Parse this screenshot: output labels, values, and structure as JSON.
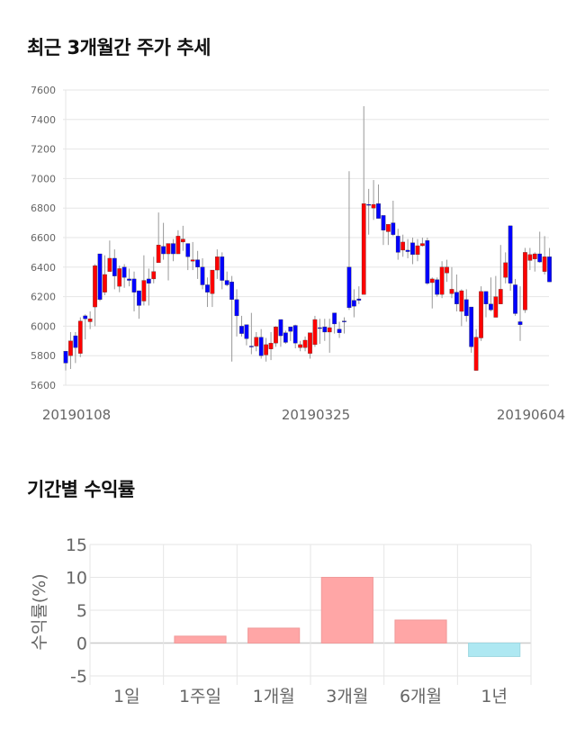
{
  "price_section": {
    "title": "최근 3개월간 주가 추세"
  },
  "return_section": {
    "title": "기간별 수익률"
  },
  "chart_data": [
    {
      "type": "candlestick",
      "ylim": [
        5600,
        7600
      ],
      "y_ticks": [
        5600,
        5800,
        6000,
        6200,
        6400,
        6600,
        6800,
        7000,
        7200,
        7400,
        7600
      ],
      "x_ticks": [
        {
          "label": "20190108",
          "index": 0
        },
        {
          "label": "20190325",
          "index": 49
        },
        {
          "label": "20190604",
          "index": 95
        }
      ],
      "grid": true,
      "colors": {
        "up": "#ff0000",
        "down": "#0000ff",
        "wick": "#999999"
      },
      "candles": [
        [
          5830,
          5830,
          5700,
          5750
        ],
        [
          5800,
          5960,
          5710,
          5900
        ],
        [
          5935,
          5960,
          5750,
          5855
        ],
        [
          5815,
          6060,
          5790,
          6035
        ],
        [
          6070,
          6080,
          5910,
          6050
        ],
        [
          6030,
          6100,
          5980,
          6050
        ],
        [
          6130,
          6420,
          6000,
          6410
        ],
        [
          6490,
          6490,
          6170,
          6180
        ],
        [
          6230,
          6480,
          6210,
          6350
        ],
        [
          6370,
          6580,
          6370,
          6460
        ],
        [
          6460,
          6520,
          6250,
          6340
        ],
        [
          6270,
          6410,
          6230,
          6390
        ],
        [
          6400,
          6420,
          6260,
          6330
        ],
        [
          6320,
          6390,
          6270,
          6310
        ],
        [
          6320,
          6370,
          6100,
          6230
        ],
        [
          6240,
          6240,
          6050,
          6140
        ],
        [
          6170,
          6480,
          6140,
          6310
        ],
        [
          6320,
          6390,
          6140,
          6290
        ],
        [
          6320,
          6470,
          6290,
          6370
        ],
        [
          6430,
          6770,
          6430,
          6550
        ],
        [
          6540,
          6700,
          6450,
          6490
        ],
        [
          6490,
          6560,
          6310,
          6560
        ],
        [
          6560,
          6590,
          6440,
          6490
        ],
        [
          6490,
          6650,
          6490,
          6610
        ],
        [
          6570,
          6680,
          6510,
          6590
        ],
        [
          6560,
          6560,
          6380,
          6470
        ],
        [
          6440,
          6570,
          6380,
          6450
        ],
        [
          6450,
          6510,
          6320,
          6400
        ],
        [
          6400,
          6460,
          6250,
          6280
        ],
        [
          6280,
          6330,
          6130,
          6230
        ],
        [
          6220,
          6380,
          6130,
          6380
        ],
        [
          6380,
          6520,
          6320,
          6470
        ],
        [
          6470,
          6500,
          6250,
          6310
        ],
        [
          6310,
          6370,
          6270,
          6280
        ],
        [
          6300,
          6340,
          5760,
          6180
        ],
        [
          6180,
          6250,
          5930,
          6070
        ],
        [
          6000,
          6070,
          5930,
          5950
        ],
        [
          6010,
          6010,
          5870,
          5915
        ],
        [
          5865,
          6090,
          5810,
          5860
        ],
        [
          5865,
          5960,
          5830,
          5925
        ],
        [
          5925,
          5980,
          5780,
          5800
        ],
        [
          5805,
          5920,
          5760,
          5875
        ],
        [
          5845,
          5960,
          5770,
          5885
        ],
        [
          5885,
          6000,
          5860,
          5995
        ],
        [
          6045,
          6045,
          5860,
          5935
        ],
        [
          5955,
          5970,
          5880,
          5890
        ],
        [
          5995,
          5995,
          5900,
          5965
        ],
        [
          6005,
          6010,
          5850,
          5885
        ],
        [
          5855,
          5900,
          5830,
          5875
        ],
        [
          5855,
          5930,
          5830,
          5905
        ],
        [
          5815,
          5955,
          5780,
          5955
        ],
        [
          5875,
          6070,
          5860,
          6045
        ],
        [
          5990,
          6050,
          5880,
          5985
        ],
        [
          5995,
          6050,
          5900,
          5960
        ],
        [
          5960,
          6050,
          5820,
          5990
        ],
        [
          6090,
          6090,
          5950,
          6015
        ],
        [
          5980,
          6030,
          5920,
          5955
        ],
        [
          6035,
          6060,
          5950,
          6030
        ],
        [
          6400,
          7050,
          6110,
          6125
        ],
        [
          6175,
          6250,
          6060,
          6135
        ],
        [
          6185,
          6270,
          6150,
          6175
        ],
        [
          6215,
          7490,
          6215,
          6830
        ],
        [
          6825,
          6930,
          6620,
          6820
        ],
        [
          6800,
          6990,
          6720,
          6825
        ],
        [
          6830,
          6960,
          6730,
          6730
        ],
        [
          6750,
          6750,
          6550,
          6650
        ],
        [
          6640,
          6690,
          6550,
          6690
        ],
        [
          6700,
          6850,
          6610,
          6620
        ],
        [
          6610,
          6660,
          6450,
          6500
        ],
        [
          6515,
          6620,
          6470,
          6570
        ],
        [
          6515,
          6590,
          6460,
          6505
        ],
        [
          6565,
          6600,
          6420,
          6485
        ],
        [
          6485,
          6590,
          6440,
          6545
        ],
        [
          6545,
          6600,
          6540,
          6560
        ],
        [
          6580,
          6600,
          6280,
          6290
        ],
        [
          6295,
          6330,
          6120,
          6320
        ],
        [
          6315,
          6330,
          6200,
          6215
        ],
        [
          6215,
          6440,
          6190,
          6400
        ],
        [
          6360,
          6450,
          6300,
          6400
        ],
        [
          6220,
          6400,
          6190,
          6250
        ],
        [
          6230,
          6350,
          6100,
          6150
        ],
        [
          6100,
          6250,
          6000,
          6240
        ],
        [
          6180,
          6250,
          6030,
          6070
        ],
        [
          6130,
          6130,
          5820,
          5860
        ],
        [
          5700,
          5980,
          5700,
          5925
        ],
        [
          5920,
          6270,
          5900,
          6235
        ],
        [
          6235,
          6235,
          6060,
          6150
        ],
        [
          6150,
          6330,
          6100,
          6110
        ],
        [
          6060,
          6340,
          6060,
          6200
        ],
        [
          6150,
          6550,
          6150,
          6250
        ],
        [
          6330,
          6500,
          6290,
          6430
        ],
        [
          6680,
          6680,
          6240,
          6290
        ],
        [
          6280,
          6320,
          6070,
          6085
        ],
        [
          6030,
          6270,
          5900,
          6010
        ],
        [
          6110,
          6530,
          6090,
          6500
        ],
        [
          6445,
          6530,
          6380,
          6485
        ],
        [
          6455,
          6500,
          6370,
          6490
        ],
        [
          6490,
          6640,
          6430,
          6435
        ],
        [
          6370,
          6610,
          6350,
          6470
        ],
        [
          6470,
          6530,
          6300,
          6300
        ]
      ]
    },
    {
      "type": "bar",
      "ylabel": "수익률(%)",
      "ylim": [
        -5,
        15
      ],
      "y_ticks": [
        -5,
        0,
        5,
        10,
        15
      ],
      "categories": [
        "1일",
        "1주일",
        "1개월",
        "3개월",
        "6개월",
        "1년"
      ],
      "values": [
        0,
        1.05,
        2.27,
        10.0,
        3.5,
        -2.05
      ],
      "grid": true,
      "colors": {
        "positive": "#ffa6a6",
        "negative": "#aee8f2"
      }
    }
  ]
}
